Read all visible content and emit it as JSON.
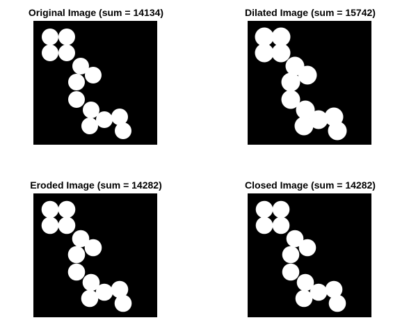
{
  "panels": [
    {
      "title": "Original Image (sum = 14134)",
      "variant": "original"
    },
    {
      "title": "Dilated Image (sum = 15742)",
      "variant": "dilated"
    },
    {
      "title": "Eroded Image (sum = 14282)",
      "variant": "eroded"
    },
    {
      "title": "Closed Image (sum = 14282)",
      "variant": "closed"
    }
  ],
  "colors": {
    "background": "#000000",
    "foreground": "#ffffff",
    "page": "#ffffff",
    "title": "#000000"
  }
}
